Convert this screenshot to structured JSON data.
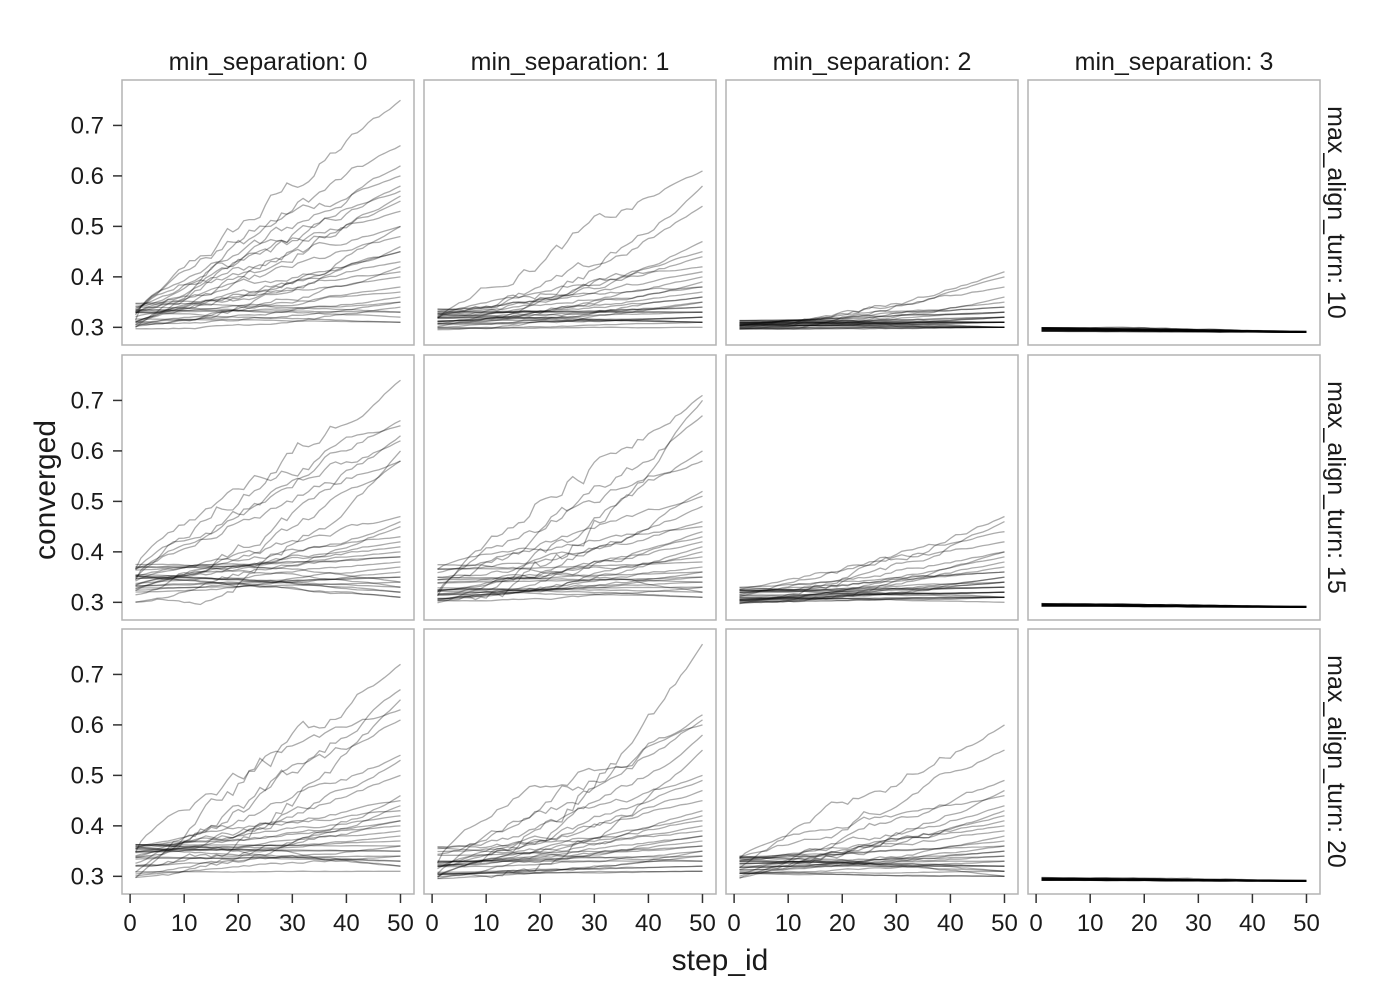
{
  "chart_data": {
    "type": "line",
    "layout": "facet_grid",
    "xlabel": "step_id",
    "ylabel": "converged",
    "x_range": [
      1,
      50
    ],
    "xlim": [
      -1.5,
      52.5
    ],
    "ylim": [
      0.265,
      0.79
    ],
    "x_ticks": [
      0,
      10,
      20,
      30,
      40,
      50
    ],
    "y_ticks": [
      0.3,
      0.4,
      0.5,
      0.6,
      0.7
    ],
    "y_tick_labels": [
      "0.3",
      "0.4",
      "0.5",
      "0.6",
      "0.7"
    ],
    "col_strip_labels": [
      "min_separation: 0",
      "min_separation: 1",
      "min_separation: 2",
      "min_separation: 3"
    ],
    "row_strip_labels": [
      "max_align_turn: 10",
      "max_align_turn: 15",
      "max_align_turn: 20"
    ],
    "series_color": "#000000",
    "series_opacity": 0.33,
    "grid": false,
    "legend": "none",
    "runs_per_panel": 30,
    "panels": [
      {
        "row": 0,
        "col": 0,
        "start_range": [
          0.295,
          0.35
        ],
        "end_values": [
          0.75,
          0.66,
          0.62,
          0.6,
          0.58,
          0.57,
          0.56,
          0.55,
          0.53,
          0.5,
          0.5,
          0.48,
          0.46,
          0.45,
          0.45,
          0.43,
          0.42,
          0.41,
          0.4,
          0.38,
          0.37,
          0.36,
          0.35,
          0.35,
          0.34,
          0.33,
          0.33,
          0.32,
          0.31,
          0.31
        ]
      },
      {
        "row": 0,
        "col": 1,
        "start_range": [
          0.295,
          0.34
        ],
        "end_values": [
          0.61,
          0.58,
          0.54,
          0.47,
          0.45,
          0.44,
          0.42,
          0.41,
          0.4,
          0.39,
          0.38,
          0.38,
          0.37,
          0.36,
          0.36,
          0.35,
          0.35,
          0.34,
          0.34,
          0.33,
          0.33,
          0.33,
          0.32,
          0.32,
          0.32,
          0.31,
          0.31,
          0.31,
          0.31,
          0.3
        ]
      },
      {
        "row": 0,
        "col": 2,
        "start_range": [
          0.295,
          0.315
        ],
        "end_values": [
          0.41,
          0.4,
          0.38,
          0.36,
          0.35,
          0.34,
          0.34,
          0.33,
          0.33,
          0.33,
          0.32,
          0.32,
          0.32,
          0.32,
          0.31,
          0.31,
          0.31,
          0.31,
          0.31,
          0.31,
          0.31,
          0.3,
          0.3,
          0.3,
          0.3,
          0.3,
          0.3,
          0.3,
          0.3,
          0.3
        ]
      },
      {
        "row": 0,
        "col": 3,
        "start_range": [
          0.292,
          0.3
        ],
        "end_values": [
          0.292,
          0.292,
          0.292,
          0.292,
          0.291,
          0.291,
          0.291,
          0.291,
          0.291,
          0.291,
          0.291,
          0.291,
          0.291,
          0.291,
          0.291,
          0.29,
          0.29,
          0.29,
          0.29,
          0.29,
          0.29,
          0.29,
          0.29,
          0.29,
          0.29,
          0.29,
          0.29,
          0.29,
          0.29,
          0.29
        ]
      },
      {
        "row": 1,
        "col": 0,
        "start_range": [
          0.295,
          0.375
        ],
        "end_values": [
          0.74,
          0.66,
          0.65,
          0.63,
          0.62,
          0.6,
          0.58,
          0.58,
          0.47,
          0.46,
          0.45,
          0.43,
          0.42,
          0.41,
          0.4,
          0.39,
          0.39,
          0.38,
          0.37,
          0.36,
          0.35,
          0.35,
          0.34,
          0.34,
          0.33,
          0.33,
          0.32,
          0.32,
          0.31,
          0.31
        ]
      },
      {
        "row": 1,
        "col": 1,
        "start_range": [
          0.295,
          0.375
        ],
        "end_values": [
          0.71,
          0.7,
          0.67,
          0.6,
          0.58,
          0.52,
          0.51,
          0.49,
          0.46,
          0.45,
          0.44,
          0.43,
          0.42,
          0.41,
          0.4,
          0.39,
          0.38,
          0.37,
          0.36,
          0.36,
          0.35,
          0.35,
          0.34,
          0.34,
          0.33,
          0.33,
          0.32,
          0.32,
          0.31,
          0.31
        ]
      },
      {
        "row": 1,
        "col": 2,
        "start_range": [
          0.295,
          0.33
        ],
        "end_values": [
          0.47,
          0.46,
          0.44,
          0.42,
          0.4,
          0.4,
          0.39,
          0.38,
          0.37,
          0.36,
          0.36,
          0.35,
          0.35,
          0.34,
          0.34,
          0.34,
          0.33,
          0.33,
          0.33,
          0.32,
          0.32,
          0.32,
          0.32,
          0.31,
          0.31,
          0.31,
          0.31,
          0.31,
          0.31,
          0.3
        ]
      },
      {
        "row": 1,
        "col": 3,
        "start_range": [
          0.292,
          0.298
        ],
        "end_values": [
          0.292,
          0.292,
          0.292,
          0.292,
          0.291,
          0.291,
          0.291,
          0.291,
          0.291,
          0.291,
          0.291,
          0.291,
          0.291,
          0.291,
          0.291,
          0.29,
          0.29,
          0.29,
          0.29,
          0.29,
          0.29,
          0.29,
          0.29,
          0.29,
          0.29,
          0.29,
          0.29,
          0.29,
          0.29,
          0.29
        ]
      },
      {
        "row": 2,
        "col": 0,
        "start_range": [
          0.295,
          0.37
        ],
        "end_values": [
          0.72,
          0.67,
          0.65,
          0.63,
          0.61,
          0.54,
          0.53,
          0.5,
          0.46,
          0.45,
          0.44,
          0.43,
          0.42,
          0.41,
          0.41,
          0.4,
          0.39,
          0.38,
          0.37,
          0.36,
          0.36,
          0.35,
          0.35,
          0.34,
          0.34,
          0.33,
          0.33,
          0.32,
          0.32,
          0.31
        ]
      },
      {
        "row": 2,
        "col": 1,
        "start_range": [
          0.295,
          0.36
        ],
        "end_values": [
          0.76,
          0.62,
          0.61,
          0.6,
          0.58,
          0.55,
          0.5,
          0.49,
          0.47,
          0.45,
          0.43,
          0.42,
          0.41,
          0.4,
          0.39,
          0.38,
          0.38,
          0.37,
          0.36,
          0.36,
          0.35,
          0.35,
          0.34,
          0.34,
          0.33,
          0.33,
          0.32,
          0.32,
          0.31,
          0.31
        ]
      },
      {
        "row": 2,
        "col": 2,
        "start_range": [
          0.295,
          0.34
        ],
        "end_values": [
          0.6,
          0.55,
          0.49,
          0.47,
          0.46,
          0.44,
          0.43,
          0.42,
          0.41,
          0.4,
          0.39,
          0.38,
          0.37,
          0.36,
          0.36,
          0.35,
          0.35,
          0.34,
          0.34,
          0.33,
          0.33,
          0.32,
          0.32,
          0.32,
          0.31,
          0.31,
          0.31,
          0.3,
          0.3,
          0.3
        ]
      },
      {
        "row": 2,
        "col": 3,
        "start_range": [
          0.292,
          0.298
        ],
        "end_values": [
          0.292,
          0.292,
          0.292,
          0.292,
          0.291,
          0.291,
          0.291,
          0.291,
          0.291,
          0.291,
          0.291,
          0.291,
          0.291,
          0.291,
          0.291,
          0.29,
          0.29,
          0.29,
          0.29,
          0.29,
          0.29,
          0.29,
          0.29,
          0.29,
          0.29,
          0.29,
          0.29,
          0.29,
          0.29,
          0.29
        ]
      }
    ]
  }
}
